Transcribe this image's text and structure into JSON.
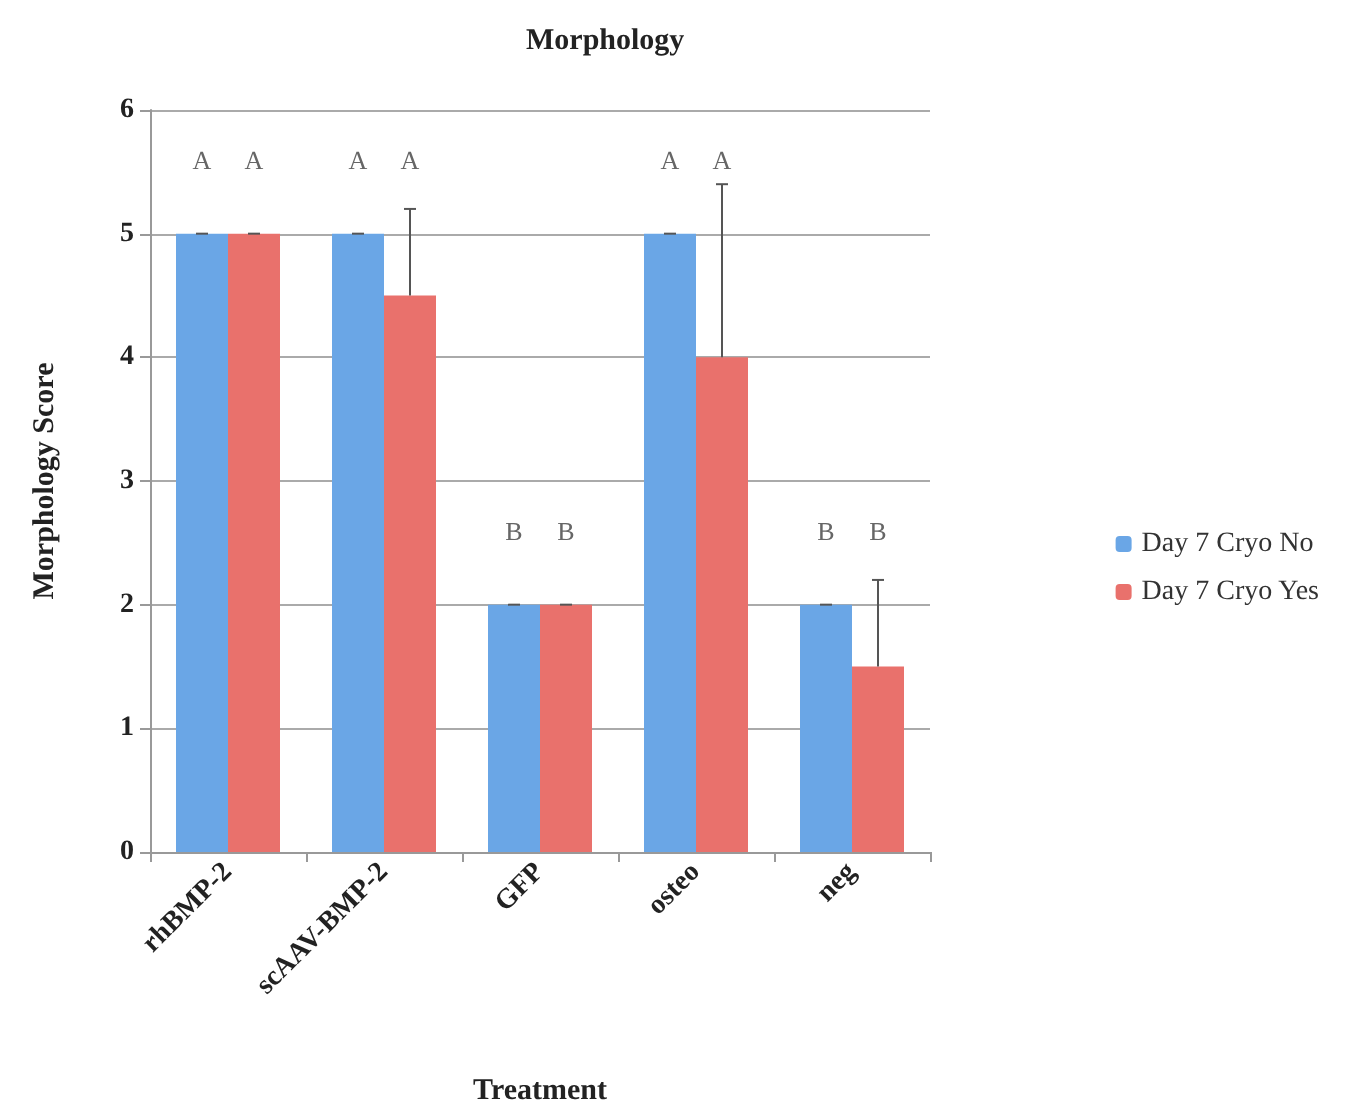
{
  "chart_data": {
    "type": "bar",
    "title": "Morphology",
    "xlabel": "Treatment",
    "ylabel": "Morphology Score",
    "categories": [
      "rhBMP-2",
      "scAAV-BMP-2",
      "GFP",
      "osteo",
      "neg"
    ],
    "series": [
      {
        "name": "Day 7 Cryo No",
        "color": "#6aa6e6",
        "values": [
          5,
          5,
          2,
          5,
          2
        ],
        "errors": [
          0,
          0,
          0,
          0,
          0
        ]
      },
      {
        "name": "Day 7 Cryo Yes",
        "color": "#e9716c",
        "values": [
          5,
          4.5,
          2,
          4,
          1.5
        ],
        "errors": [
          0,
          0.7,
          0,
          1.4,
          0.7
        ]
      }
    ],
    "annotations": [
      "A",
      "A",
      "A",
      "A",
      "B",
      "B",
      "A",
      "A",
      "B",
      "B"
    ],
    "ylim": [
      0,
      6
    ],
    "yticks": [
      0,
      1,
      2,
      3,
      4,
      5,
      6
    ],
    "grid": "y",
    "legend": "right"
  }
}
